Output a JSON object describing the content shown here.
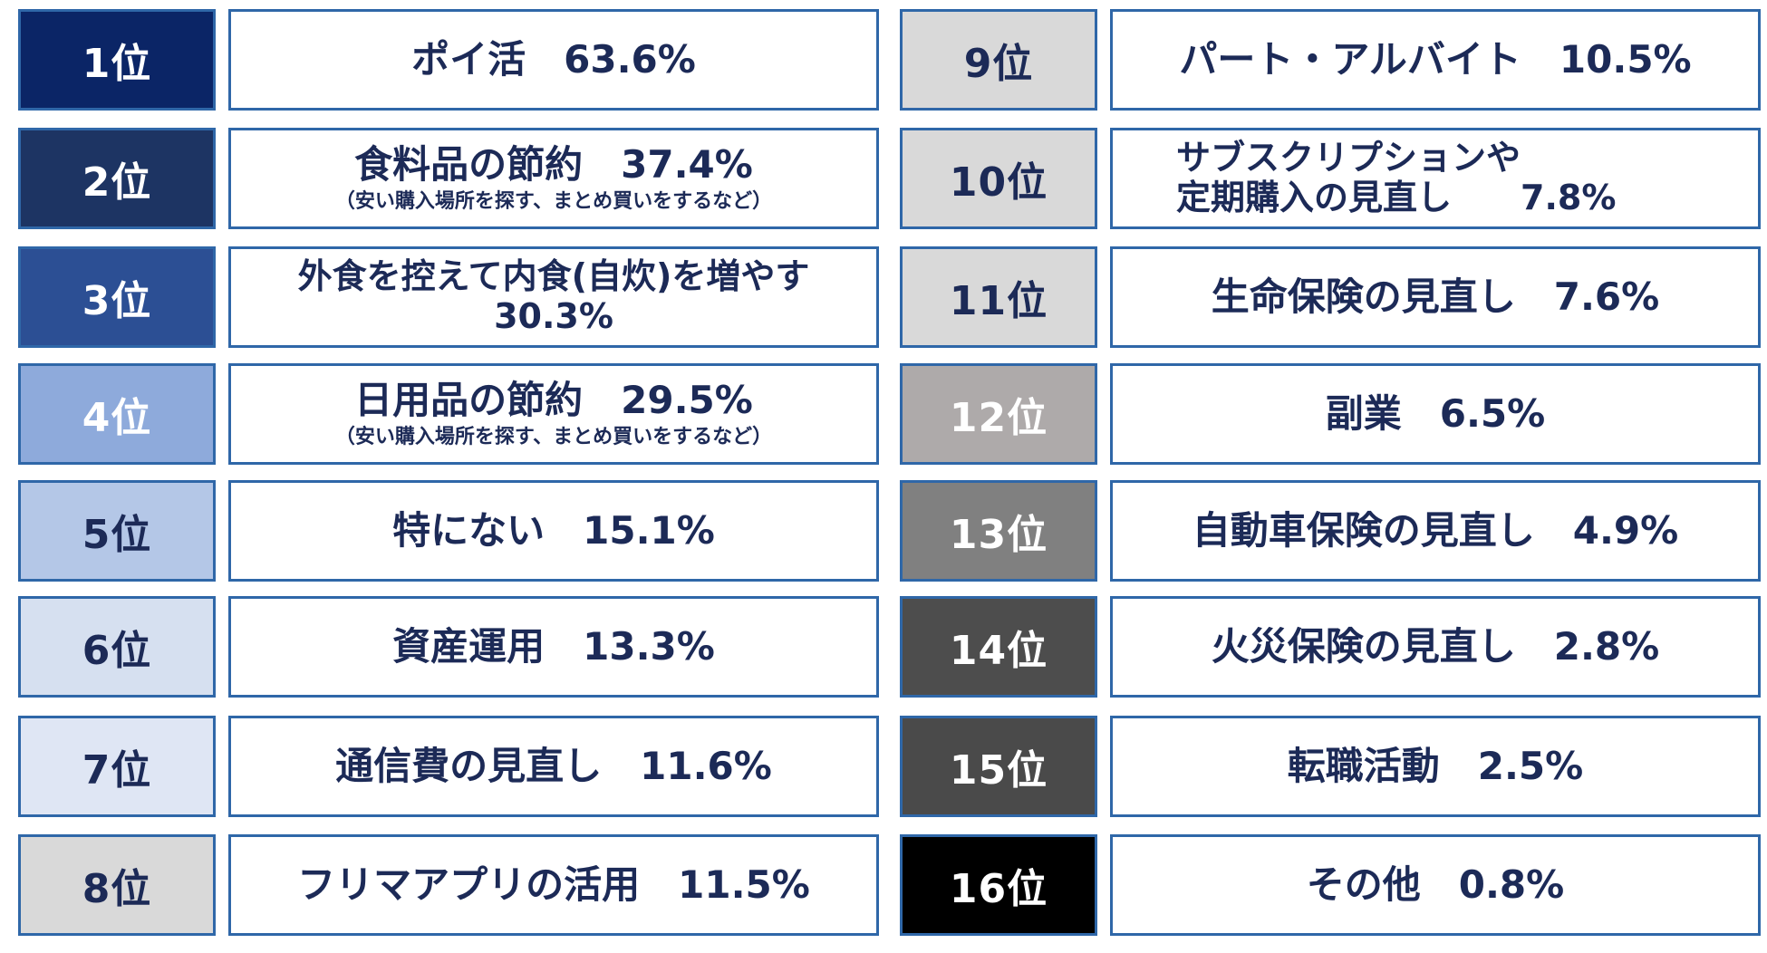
{
  "colors": {
    "border": "#2f67a8",
    "text_navy": "#1c2a57"
  },
  "left_column": [
    {
      "rank": "1位",
      "rank_bg": "#0b2566",
      "rank_fg": "#ffffff",
      "lines": [
        "ポイ活　63.6%"
      ],
      "sub": ""
    },
    {
      "rank": "2位",
      "rank_bg": "#1d3463",
      "rank_fg": "#ffffff",
      "lines": [
        "食料品の節約　37.4%"
      ],
      "sub": "（安い購入場所を探す、まとめ買いをするなど）"
    },
    {
      "rank": "3位",
      "rank_bg": "#2c4f94",
      "rank_fg": "#ffffff",
      "lines": [
        "外食を控えて内食(自炊)を増やす",
        "30.3%"
      ],
      "sub": ""
    },
    {
      "rank": "4位",
      "rank_bg": "#8eaadb",
      "rank_fg": "#ffffff",
      "lines": [
        "日用品の節約　29.5%"
      ],
      "sub": "（安い購入場所を探す、まとめ買いをするなど）"
    },
    {
      "rank": "5位",
      "rank_bg": "#b4c7e7",
      "rank_fg": "#1c2a57",
      "lines": [
        "特にない　15.1%"
      ],
      "sub": ""
    },
    {
      "rank": "6位",
      "rank_bg": "#d6e0f0",
      "rank_fg": "#1c2a57",
      "lines": [
        "資産運用　13.3%"
      ],
      "sub": ""
    },
    {
      "rank": "7位",
      "rank_bg": "#dfe6f4",
      "rank_fg": "#1c2a57",
      "lines": [
        "通信費の見直し　11.6%"
      ],
      "sub": ""
    },
    {
      "rank": "8位",
      "rank_bg": "#d9d9d9",
      "rank_fg": "#1c2a57",
      "lines": [
        "フリマアプリの活用　11.5%"
      ],
      "sub": ""
    }
  ],
  "right_column": [
    {
      "rank": "9位",
      "rank_bg": "#d9d9d9",
      "rank_fg": "#1c2a57",
      "lines": [
        "パート・アルバイト　10.5%"
      ],
      "sub": ""
    },
    {
      "rank": "10位",
      "rank_bg": "#d9d9d9",
      "rank_fg": "#1c2a57",
      "lines": [
        "サブスクリプションや",
        "定期購入の見直し　　7.8%"
      ],
      "sub": ""
    },
    {
      "rank": "11位",
      "rank_bg": "#d9d9d9",
      "rank_fg": "#1c2a57",
      "lines": [
        "生命保険の見直し　7.6%"
      ],
      "sub": ""
    },
    {
      "rank": "12位",
      "rank_bg": "#aeaaaa",
      "rank_fg": "#ffffff",
      "lines": [
        "副業　6.5%"
      ],
      "sub": ""
    },
    {
      "rank": "13位",
      "rank_bg": "#808080",
      "rank_fg": "#ffffff",
      "lines": [
        "自動車保険の見直し　4.9%"
      ],
      "sub": ""
    },
    {
      "rank": "14位",
      "rank_bg": "#4d4d4d",
      "rank_fg": "#ffffff",
      "lines": [
        "火災保険の見直し　2.8%"
      ],
      "sub": ""
    },
    {
      "rank": "15位",
      "rank_bg": "#4a4a4a",
      "rank_fg": "#ffffff",
      "lines": [
        "転職活動　2.5%"
      ],
      "sub": ""
    },
    {
      "rank": "16位",
      "rank_bg": "#000000",
      "rank_fg": "#ffffff",
      "lines": [
        "その他　0.8%"
      ],
      "sub": ""
    }
  ]
}
